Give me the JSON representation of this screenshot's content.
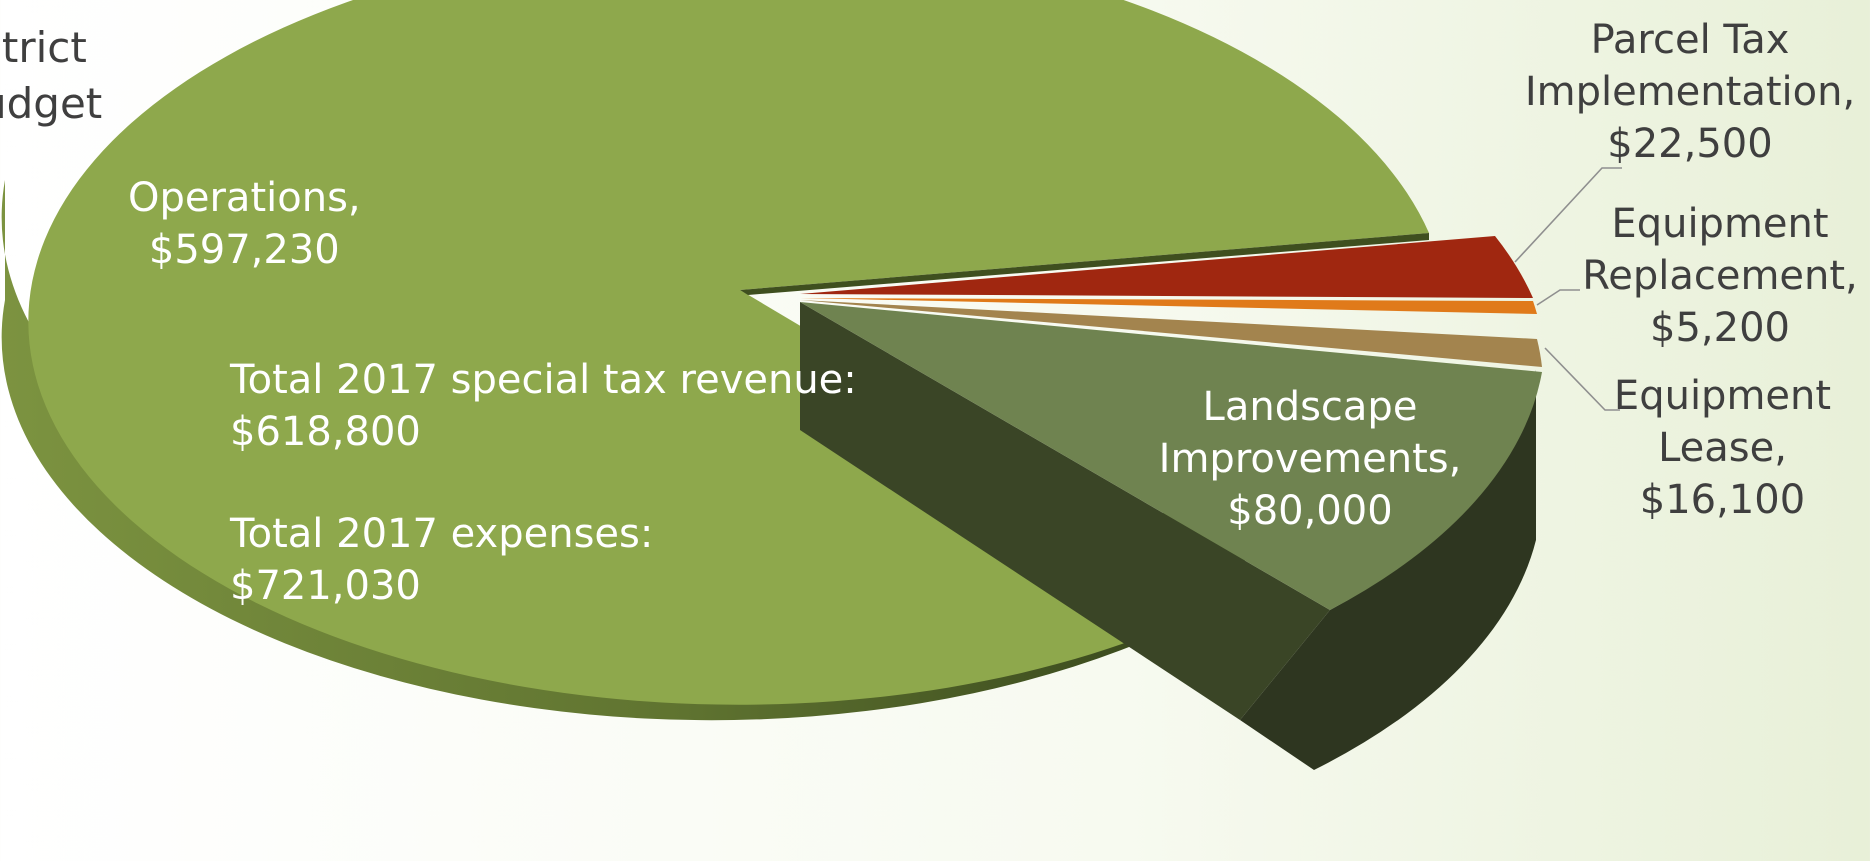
{
  "page": {
    "title_fragment": [
      "strict",
      "udget"
    ]
  },
  "summary": {
    "revenue_label": "Total 2017 special tax revenue:",
    "revenue_value": "$618,800",
    "expenses_label": "Total 2017 expenses:",
    "expenses_value": "$721,030"
  },
  "chart_data": {
    "type": "pie",
    "style": "3d-exploded",
    "slices": [
      {
        "label": "Operations",
        "value": 597230,
        "display": [
          "Operations,",
          "$597,230"
        ],
        "color": "#8fa84c"
      },
      {
        "label": "Parcel Tax Implementation",
        "value": 22500,
        "display": [
          "Parcel Tax",
          "Implementation,",
          "$22,500"
        ],
        "color": "#a02710"
      },
      {
        "label": "Equipment Replacement",
        "value": 5200,
        "display": [
          "Equipment",
          "Replacement,",
          "$5,200"
        ],
        "color": "#e07a1a"
      },
      {
        "label": "Equipment Lease",
        "value": 16100,
        "display": [
          "Equipment",
          "Lease,",
          "$16,100"
        ],
        "color": "#a3844e"
      },
      {
        "label": "Landscape Improvements",
        "value": 80000,
        "display": [
          "Landscape",
          "Improvements,",
          "$80,000"
        ],
        "color": "#6e8150"
      }
    ]
  }
}
